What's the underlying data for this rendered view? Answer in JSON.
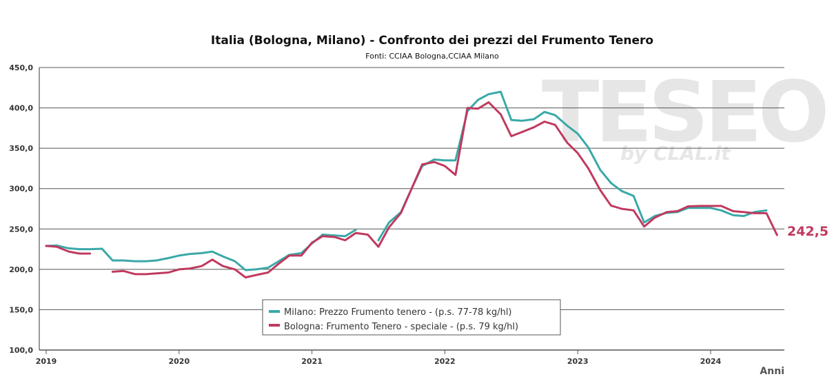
{
  "chart_data": {
    "type": "line",
    "title": "Italia (Bologna, Milano) - Confronto dei prezzi del Frumento Tenero",
    "subtitle": "Fonti: CCIAA Bologna,CCIAA Milano",
    "xlabel": "Anni",
    "ylabel": "",
    "ylim": [
      100,
      450
    ],
    "xlim": [
      2019,
      2024.58
    ],
    "yticks": [
      100,
      150,
      200,
      250,
      300,
      350,
      400,
      450
    ],
    "ytick_labels": [
      "100,0",
      "150,0",
      "200,0",
      "250,0",
      "300,0",
      "350,0",
      "400,0",
      "450,0"
    ],
    "xticks": [
      2019,
      2020,
      2021,
      2022,
      2023,
      2024
    ],
    "xtick_labels": [
      "2019",
      "2020",
      "2021",
      "2022",
      "2023",
      "2024"
    ],
    "grid": true,
    "legend_position": "bottom-center",
    "watermark": {
      "main": "TESEO",
      "sub": "by CLAL.it"
    },
    "end_label": "242,5",
    "series": [
      {
        "name": "Milano: Prezzo Frumento tenero - (p.s. 77-78 kg/hl)",
        "color": "#3aa8a8",
        "segments": [
          [
            [
              2019.0,
              229
            ],
            [
              2019.08,
              229.5
            ],
            [
              2019.17,
              226
            ],
            [
              2019.25,
              225
            ],
            [
              2019.33,
              225
            ],
            [
              2019.42,
              225.5
            ],
            [
              2019.5,
              211
            ],
            [
              2019.58,
              211
            ],
            [
              2019.67,
              210
            ],
            [
              2019.75,
              210
            ],
            [
              2019.83,
              211
            ],
            [
              2019.92,
              214
            ],
            [
              2020.0,
              217
            ],
            [
              2020.08,
              219
            ],
            [
              2020.17,
              220
            ],
            [
              2020.25,
              222
            ],
            [
              2020.33,
              216
            ],
            [
              2020.42,
              210
            ],
            [
              2020.5,
              199
            ],
            [
              2020.58,
              200
            ],
            [
              2020.67,
              202
            ],
            [
              2020.75,
              210
            ],
            [
              2020.83,
              218
            ],
            [
              2020.92,
              220
            ],
            [
              2021.0,
              232
            ],
            [
              2021.08,
              243
            ],
            [
              2021.17,
              242
            ],
            [
              2021.25,
              241
            ],
            [
              2021.33,
              249
            ]
          ],
          [
            [
              2021.5,
              236
            ],
            [
              2021.58,
              258
            ],
            [
              2021.67,
              271
            ],
            [
              2021.75,
              300
            ],
            [
              2021.83,
              328
            ],
            [
              2021.92,
              336
            ],
            [
              2022.0,
              335
            ],
            [
              2022.08,
              335
            ],
            [
              2022.17,
              396
            ],
            [
              2022.25,
              410
            ],
            [
              2022.33,
              417
            ],
            [
              2022.42,
              420
            ],
            [
              2022.5,
              385
            ],
            [
              2022.58,
              384
            ],
            [
              2022.67,
              386
            ],
            [
              2022.75,
              395
            ],
            [
              2022.83,
              391
            ],
            [
              2022.92,
              378
            ],
            [
              2023.0,
              368
            ],
            [
              2023.08,
              351
            ],
            [
              2023.17,
              323
            ],
            [
              2023.25,
              307
            ],
            [
              2023.33,
              297
            ],
            [
              2023.42,
              291
            ],
            [
              2023.5,
              258
            ],
            [
              2023.58,
              266
            ],
            [
              2023.67,
              270
            ],
            [
              2023.75,
              271
            ],
            [
              2023.83,
              276
            ],
            [
              2023.92,
              276
            ],
            [
              2024.0,
              276
            ],
            [
              2024.08,
              273
            ],
            [
              2024.17,
              267
            ],
            [
              2024.25,
              266
            ],
            [
              2024.33,
              271
            ],
            [
              2024.42,
              273
            ]
          ]
        ]
      },
      {
        "name": "Bologna: Frumento Tenero - speciale - (p.s. 79 kg/hl)",
        "color": "#c0395e",
        "segments": [
          [
            [
              2019.0,
              229
            ],
            [
              2019.08,
              228
            ],
            [
              2019.17,
              222
            ],
            [
              2019.25,
              219.5
            ],
            [
              2019.33,
              219.5
            ]
          ],
          [
            [
              2019.5,
              197
            ],
            [
              2019.58,
              198
            ],
            [
              2019.67,
              194
            ],
            [
              2019.75,
              194
            ],
            [
              2019.83,
              195
            ],
            [
              2019.92,
              196
            ],
            [
              2020.0,
              200
            ],
            [
              2020.08,
              201
            ],
            [
              2020.17,
              204
            ],
            [
              2020.25,
              212
            ],
            [
              2020.33,
              204
            ],
            [
              2020.42,
              200
            ],
            [
              2020.5,
              190
            ],
            [
              2020.58,
              193
            ],
            [
              2020.67,
              196
            ],
            [
              2020.75,
              207
            ],
            [
              2020.83,
              217
            ],
            [
              2020.92,
              217
            ],
            [
              2021.0,
              233
            ],
            [
              2021.08,
              241
            ],
            [
              2021.17,
              240
            ],
            [
              2021.25,
              236
            ],
            [
              2021.33,
              245
            ],
            [
              2021.42,
              243
            ],
            [
              2021.5,
              228
            ],
            [
              2021.58,
              252
            ],
            [
              2021.67,
              270
            ],
            [
              2021.75,
              300
            ],
            [
              2021.83,
              330
            ],
            [
              2021.92,
              333
            ],
            [
              2022.0,
              328
            ],
            [
              2022.08,
              317
            ],
            [
              2022.17,
              400
            ],
            [
              2022.25,
              399
            ],
            [
              2022.33,
              407
            ],
            [
              2022.42,
              392
            ],
            [
              2022.5,
              365
            ],
            [
              2022.58,
              370
            ],
            [
              2022.67,
              376
            ],
            [
              2022.75,
              383
            ],
            [
              2022.83,
              379
            ],
            [
              2022.92,
              357
            ],
            [
              2023.0,
              344
            ],
            [
              2023.08,
              325
            ],
            [
              2023.17,
              298
            ],
            [
              2023.25,
              279
            ],
            [
              2023.33,
              275
            ],
            [
              2023.42,
              273
            ],
            [
              2023.5,
              253
            ],
            [
              2023.58,
              264
            ],
            [
              2023.67,
              271
            ],
            [
              2023.75,
              272
            ],
            [
              2023.83,
              278
            ],
            [
              2023.92,
              278.5
            ],
            [
              2024.0,
              278.5
            ],
            [
              2024.08,
              278.5
            ],
            [
              2024.17,
              272
            ],
            [
              2024.25,
              271
            ],
            [
              2024.33,
              269.5
            ],
            [
              2024.42,
              269.5
            ],
            [
              2024.5,
              242.5
            ]
          ]
        ]
      }
    ]
  }
}
